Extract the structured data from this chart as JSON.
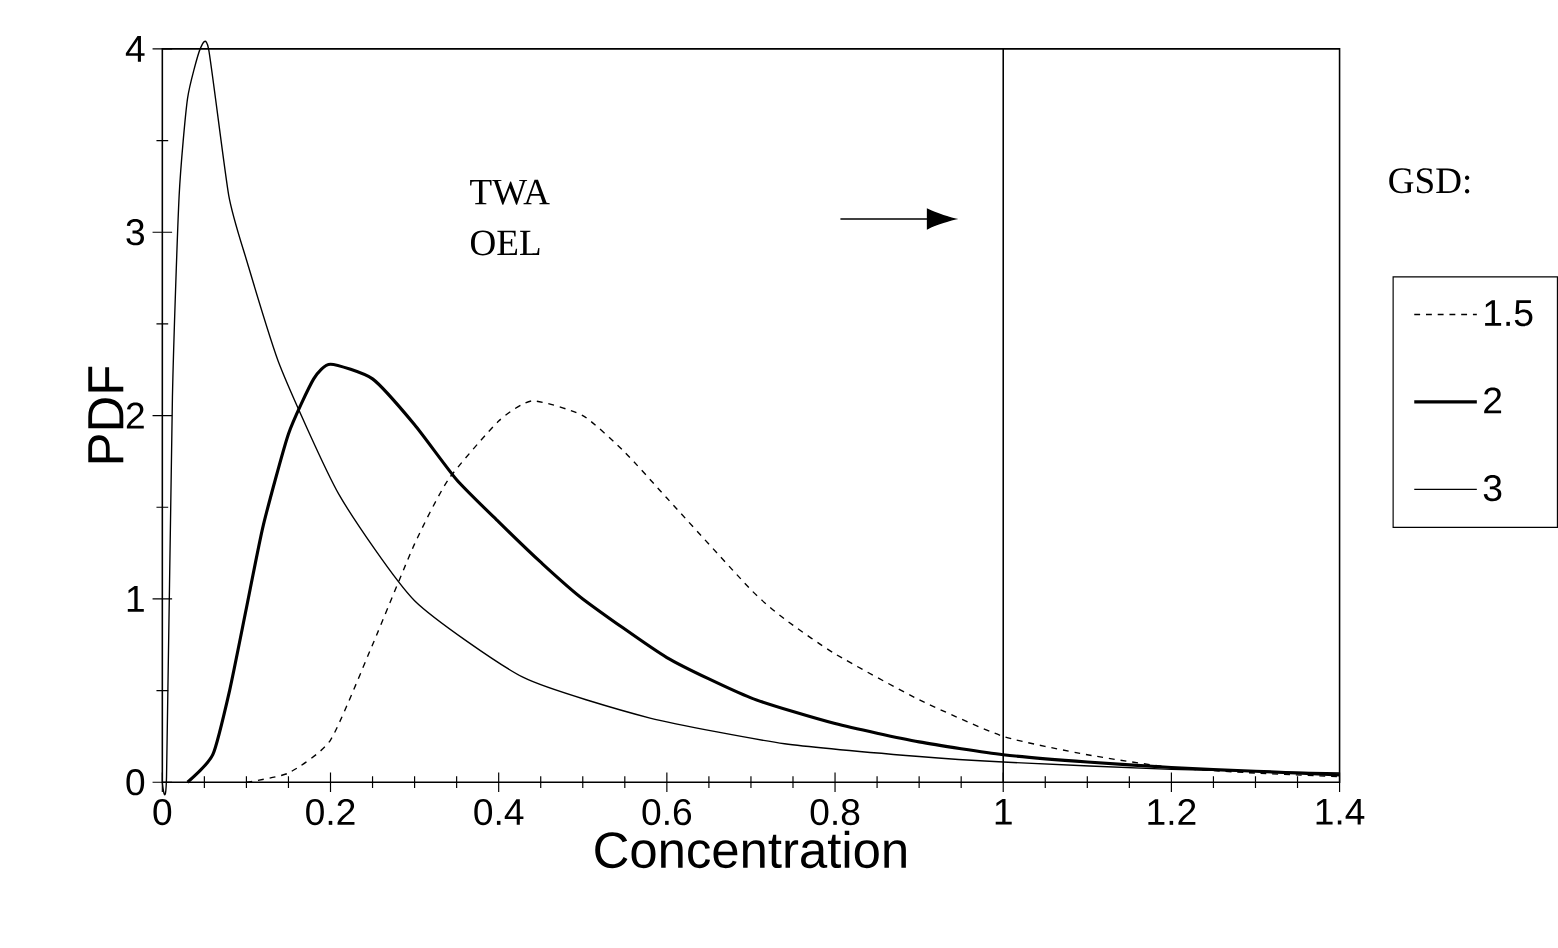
{
  "chart_data": {
    "type": "line",
    "xlabel": "Concentration",
    "ylabel": "PDF",
    "legend_title": "GSD:",
    "legend": "right",
    "xlim": [
      0,
      1.4
    ],
    "ylim": [
      0,
      4
    ],
    "xticks": [
      0,
      0.2,
      0.4,
      0.6,
      0.8,
      1,
      1.2,
      1.4
    ],
    "yticks": [
      0,
      1,
      2,
      3,
      4
    ],
    "grid": false,
    "ref_lines": [
      {
        "axis": "x",
        "value": 1,
        "color": "#000000",
        "line_style": "solid"
      }
    ],
    "annotations": [
      "TWA OEL"
    ],
    "series": [
      {
        "name": "1.5",
        "color": "#000000",
        "line_style": "dashed",
        "x": [
          0.1,
          0.15,
          0.2,
          0.25,
          0.3,
          0.34,
          0.4,
          0.44,
          0.5,
          0.55,
          0.6,
          0.7,
          0.74,
          0.8,
          0.9,
          1.0,
          1.1,
          1.2,
          1.3,
          1.4
        ],
        "values": [
          0,
          0.05,
          0.23,
          0.75,
          1.3,
          1.65,
          1.97,
          2.08,
          2.0,
          1.8,
          1.55,
          1.05,
          0.89,
          0.7,
          0.45,
          0.25,
          0.15,
          0.08,
          0.05,
          0.03
        ]
      },
      {
        "name": "2",
        "color": "#000000",
        "line_style": "solid",
        "x": [
          0.03,
          0.06,
          0.08,
          0.1,
          0.12,
          0.15,
          0.18,
          0.2,
          0.25,
          0.3,
          0.35,
          0.4,
          0.45,
          0.5,
          0.6,
          0.7,
          0.8,
          0.9,
          1.0,
          1.1,
          1.2,
          1.3,
          1.4
        ],
        "values": [
          0,
          0.15,
          0.5,
          0.95,
          1.4,
          1.9,
          2.2,
          2.28,
          2.2,
          1.95,
          1.65,
          1.42,
          1.2,
          1.0,
          0.68,
          0.46,
          0.32,
          0.22,
          0.15,
          0.11,
          0.08,
          0.06,
          0.04
        ]
      },
      {
        "name": "3",
        "color": "#000000",
        "line_style": "solid",
        "x": [
          0,
          0.005,
          0.012,
          0.02,
          0.03,
          0.045,
          0.055,
          0.079,
          0.1,
          0.14,
          0.21,
          0.3,
          0.43,
          0.58,
          0.74,
          0.9,
          1.0,
          1.2,
          1.4
        ],
        "values": [
          0,
          0.03,
          2.1,
          3.2,
          3.73,
          4.0,
          4.0,
          3.2,
          2.85,
          2.27,
          1.57,
          0.99,
          0.57,
          0.35,
          0.21,
          0.14,
          0.11,
          0.07,
          0.05
        ]
      }
    ]
  }
}
